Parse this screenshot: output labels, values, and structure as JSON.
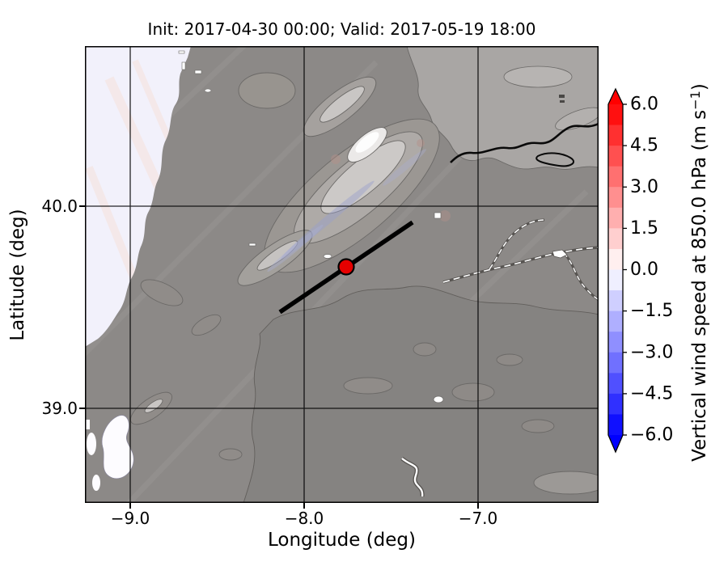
{
  "figure": {
    "title": "Init: 2017-04-30 00:00; Valid: 2017-05-19 18:00"
  },
  "axes": {
    "xlabel": "Longitude (deg)",
    "ylabel": "Latitude (deg)",
    "x_tick_labels": [
      "−9.0",
      "−8.0",
      "−7.0"
    ],
    "y_tick_labels": [
      "40.0",
      "39.0"
    ]
  },
  "colorbar": {
    "tick_labels": [
      "6.0",
      "4.5",
      "3.0",
      "1.5",
      "0.0",
      "−1.5",
      "−3.0",
      "−4.5",
      "−6.0"
    ],
    "label_prefix": "Vertical wind speed at 850.0 hPa (m s",
    "label_superscript": "−1",
    "label_suffix": ")",
    "over_color": "#ff0000",
    "under_color": "#0000ff",
    "segment_colors": [
      "#ff1010",
      "#ff3030",
      "#ff5050",
      "#ff7070",
      "#ff8f8f",
      "#ffafaf",
      "#ffcfcf",
      "#ffefef",
      "#efefff",
      "#cfcfff",
      "#afafff",
      "#8f8fff",
      "#7070ff",
      "#5050ff",
      "#3030ff",
      "#1010ff"
    ]
  },
  "map_colors": {
    "ocean": "#f2f1fb",
    "land_base": "#8c8987",
    "high_plateau": "#a9a6a4",
    "peak_white": "#fdfdfd",
    "marker_red": "#e60000"
  },
  "chart_data": {
    "type": "heatmap",
    "subtype": "geographic contour map with diverging colorbar",
    "title": "Init: 2017-04-30 00:00; Valid: 2017-05-19 18:00",
    "xlabel": "Longitude (deg)",
    "ylabel": "Latitude (deg)",
    "xlim": [
      -9.17,
      -6.42
    ],
    "ylim": [
      38.55,
      40.78
    ],
    "x_ticks": [
      -9.0,
      -8.0,
      -7.0
    ],
    "y_ticks": [
      40.0,
      39.0
    ],
    "grid": true,
    "colorbar": {
      "label": "Vertical wind speed at 850.0 hPa (m s^-1)",
      "ticks": [
        6.0,
        4.5,
        3.0,
        1.5,
        0.0,
        -1.5,
        -3.0,
        -4.5,
        -6.0
      ],
      "vmin": -6.0,
      "vmax": 6.0,
      "level_step": 0.75,
      "colormap": "blue-white-red (bwr), discrete",
      "extend": "both"
    },
    "field_description": "Vertical wind speed near 0 m/s over almost the whole domain (neutral pale shading) drawn over gray terrain-elevation contours of central Portugal; pale ocean in the north-west corner, bright white high peak (Serra da Estrela) near the domain centre-north.",
    "annotations": {
      "marker": {
        "type": "point",
        "color": "#e60000",
        "edge_color": "#000000",
        "lon": -7.76,
        "lat": 39.7
      },
      "cross_section_line": {
        "color": "#000000",
        "from": {
          "lon": -8.13,
          "lat": 39.47
        },
        "to": {
          "lon": -7.36,
          "lat": 39.93
        }
      }
    }
  }
}
